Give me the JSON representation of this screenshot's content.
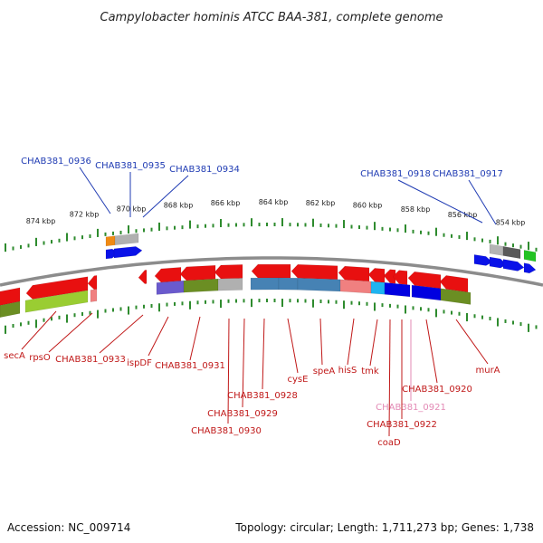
{
  "title": "Campylobacter hominis ATCC BAA-381, complete genome",
  "footer": {
    "accession": "Accession: NC_009714",
    "summary": "Topology: circular; Length: 1,711,273 bp; Genes: 1,738"
  },
  "scale_labels": [
    "874 kbp",
    "872 kbp",
    "870 kbp",
    "868 kbp",
    "866 kbp",
    "864 kbp",
    "862 kbp",
    "860 kbp",
    "858 kbp",
    "856 kbp",
    "854 kbp"
  ],
  "top_gene_labels": [
    "CHAB381_0936",
    "CHAB381_0935",
    "CHAB381_0934",
    "CHAB381_0918",
    "CHAB381_0917"
  ],
  "bottom_gene_labels": [
    "secA",
    "rpsO",
    "CHAB381_0933",
    "ispDF",
    "CHAB381_0931",
    "CHAB381_0930",
    "CHAB381_0929",
    "CHAB381_0928",
    "cysE",
    "speA",
    "hisS",
    "tmk",
    "CHAB381_0921",
    "CHAB381_0922",
    "coaD",
    "CHAB381_0920",
    "murA"
  ],
  "colors": {
    "ticks": "#2e8b2e",
    "backbone": "#8c8c8c",
    "top_label": "#1f3bb3",
    "bottom_label": "#c01818",
    "pink_label": "#e38ab5",
    "forward_arrow": "#0a12e8",
    "reverse_arrow": "#e81010"
  }
}
